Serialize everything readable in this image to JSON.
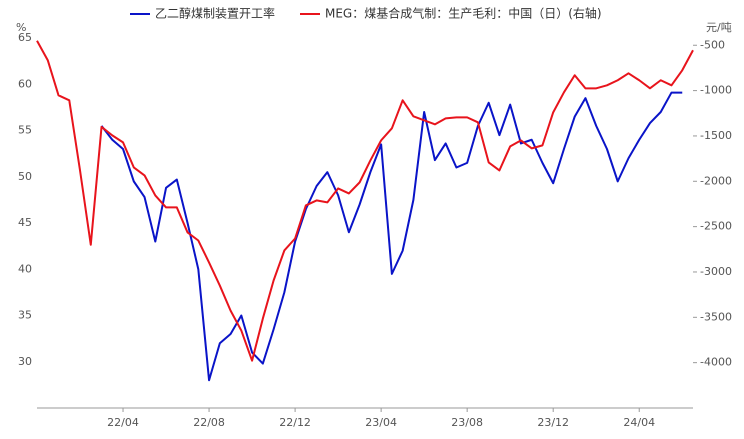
{
  "chart_data": {
    "type": "line",
    "ylabel": "%",
    "y2label": "元/吨",
    "x": [
      0,
      0.5,
      1,
      1.5,
      2,
      2.5,
      3,
      3.5,
      4,
      4.5,
      5,
      5.5,
      6,
      6.5,
      7,
      7.5,
      8,
      8.5,
      9,
      9.5,
      10,
      10.5,
      11,
      11.5,
      12,
      12.5,
      13,
      13.5,
      14,
      14.5,
      15,
      15.5,
      16,
      16.5,
      17,
      17.5,
      18,
      18.5,
      19,
      19.5,
      20,
      20.5,
      21,
      21.5,
      22,
      22.5,
      23,
      23.5,
      24,
      24.5,
      25,
      25.5,
      26,
      26.5,
      27,
      27.5,
      28,
      28.5,
      29,
      29.5,
      30,
      30.5
    ],
    "xlim": [
      0,
      30.5
    ],
    "xticks": [
      {
        "value": 4,
        "label": "22/04"
      },
      {
        "value": 8,
        "label": "22/08"
      },
      {
        "value": 12,
        "label": "22/12"
      },
      {
        "value": 16,
        "label": "23/04"
      },
      {
        "value": 20,
        "label": "23/08"
      },
      {
        "value": 24,
        "label": "23/12"
      },
      {
        "value": 28,
        "label": "24/04"
      }
    ],
    "ylim": [
      25,
      65
    ],
    "yticks": [
      30,
      35,
      40,
      45,
      50,
      55,
      60,
      65
    ],
    "y2lim": [
      -4500,
      -420
    ],
    "y2ticks": [
      -4000,
      -3500,
      -3000,
      -2500,
      -2000,
      -1500,
      -1000,
      -500
    ],
    "series": [
      {
        "name": "乙二醇煤制装置开工率",
        "color": "#0a14c8",
        "values": [
          null,
          null,
          null,
          null,
          null,
          null,
          55.5,
          54,
          53,
          49.5,
          47.8,
          43,
          48.8,
          49.7,
          45,
          40,
          28,
          32,
          33,
          35,
          31,
          29.8,
          33.5,
          37.5,
          43,
          46.5,
          49,
          50.5,
          48,
          44,
          47,
          50.5,
          53.5,
          39.5,
          42,
          47.5,
          57,
          51.8,
          53.6,
          51,
          51.5,
          55.5,
          58,
          54.5,
          57.8,
          53.6,
          54,
          51.5,
          49.3,
          53,
          56.5,
          58.5,
          55.5,
          53,
          49.5,
          52,
          54,
          55.8,
          57,
          59.1,
          59.1,
          null
        ]
      },
      {
        "name": "MEG：煤基合成气制：生产毛利：中国（日）(右轴)",
        "color": "#e8141c",
        "axis": "y2",
        "values": [
          -450,
          -665,
          -1052,
          -1107,
          -1880,
          -2700,
          -1400,
          -1494,
          -1571,
          -1847,
          -1935,
          -2156,
          -2288,
          -2288,
          -2564,
          -2653,
          -2896,
          -3150,
          -3426,
          -3646,
          -3978,
          -3514,
          -3094,
          -2763,
          -2631,
          -2266,
          -2211,
          -2233,
          -2079,
          -2134,
          -2012,
          -1770,
          -1549,
          -1416,
          -1107,
          -1284,
          -1328,
          -1372,
          -1306,
          -1295,
          -1295,
          -1350,
          -1792,
          -1880,
          -1615,
          -1549,
          -1637,
          -1604,
          -1240,
          -1019,
          -831,
          -975,
          -975,
          -942,
          -886,
          -809,
          -886,
          -975,
          -886,
          -942,
          -776,
          -555
        ]
      }
    ]
  }
}
